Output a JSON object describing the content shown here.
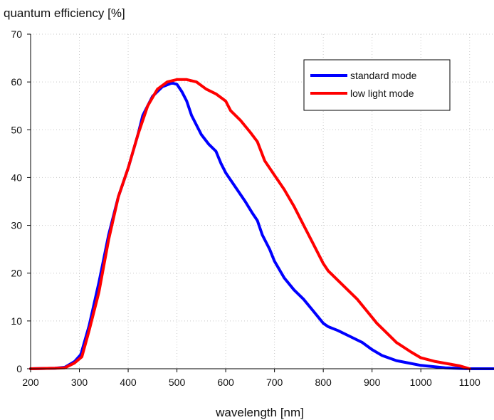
{
  "chart_data": {
    "type": "line",
    "ylabel": "quantum efficiency [%]",
    "xlabel": "wavelength [nm]",
    "xlim": [
      200,
      1150
    ],
    "ylim": [
      0,
      70
    ],
    "xticks": [
      200,
      300,
      400,
      500,
      600,
      700,
      800,
      900,
      1000,
      1100
    ],
    "yticks": [
      0,
      10,
      20,
      30,
      40,
      50,
      60,
      70
    ],
    "grid": true,
    "legend_position": "top-right",
    "series": [
      {
        "name": "standard mode",
        "color": "#0000ff",
        "points": [
          [
            200,
            0
          ],
          [
            250,
            0.1
          ],
          [
            270,
            0.3
          ],
          [
            290,
            1.5
          ],
          [
            303,
            3
          ],
          [
            320,
            9
          ],
          [
            340,
            18
          ],
          [
            360,
            28
          ],
          [
            380,
            36
          ],
          [
            400,
            42
          ],
          [
            420,
            49
          ],
          [
            430,
            53
          ],
          [
            450,
            57
          ],
          [
            470,
            59
          ],
          [
            490,
            59.8
          ],
          [
            500,
            59.5
          ],
          [
            510,
            58
          ],
          [
            520,
            56
          ],
          [
            530,
            53
          ],
          [
            550,
            49
          ],
          [
            565,
            47
          ],
          [
            580,
            45.5
          ],
          [
            590,
            43
          ],
          [
            600,
            41
          ],
          [
            620,
            38
          ],
          [
            640,
            35
          ],
          [
            655,
            32.5
          ],
          [
            665,
            31
          ],
          [
            675,
            28
          ],
          [
            690,
            25
          ],
          [
            700,
            22.5
          ],
          [
            720,
            19
          ],
          [
            740,
            16.5
          ],
          [
            760,
            14.5
          ],
          [
            780,
            12
          ],
          [
            800,
            9.5
          ],
          [
            810,
            8.8
          ],
          [
            830,
            8
          ],
          [
            850,
            7
          ],
          [
            880,
            5.5
          ],
          [
            900,
            4
          ],
          [
            920,
            2.8
          ],
          [
            950,
            1.7
          ],
          [
            1000,
            0.7
          ],
          [
            1050,
            0.2
          ],
          [
            1100,
            0
          ],
          [
            1150,
            0
          ]
        ]
      },
      {
        "name": "low light mode",
        "color": "#ff0000",
        "points": [
          [
            200,
            0
          ],
          [
            250,
            0.1
          ],
          [
            270,
            0.2
          ],
          [
            290,
            1.2
          ],
          [
            305,
            2.5
          ],
          [
            320,
            8
          ],
          [
            340,
            16
          ],
          [
            360,
            27
          ],
          [
            380,
            36
          ],
          [
            400,
            42
          ],
          [
            420,
            49
          ],
          [
            440,
            55
          ],
          [
            460,
            58.5
          ],
          [
            480,
            60
          ],
          [
            500,
            60.5
          ],
          [
            520,
            60.5
          ],
          [
            540,
            60
          ],
          [
            560,
            58.5
          ],
          [
            580,
            57.5
          ],
          [
            600,
            56
          ],
          [
            610,
            54
          ],
          [
            630,
            52
          ],
          [
            650,
            49.5
          ],
          [
            665,
            47.5
          ],
          [
            680,
            43.5
          ],
          [
            700,
            40.5
          ],
          [
            720,
            37.5
          ],
          [
            740,
            34
          ],
          [
            760,
            30
          ],
          [
            780,
            26
          ],
          [
            800,
            22
          ],
          [
            810,
            20.5
          ],
          [
            830,
            18.5
          ],
          [
            850,
            16.5
          ],
          [
            870,
            14.5
          ],
          [
            890,
            12
          ],
          [
            910,
            9.5
          ],
          [
            930,
            7.5
          ],
          [
            950,
            5.5
          ],
          [
            980,
            3.5
          ],
          [
            1000,
            2.3
          ],
          [
            1030,
            1.5
          ],
          [
            1080,
            0.6
          ],
          [
            1100,
            0
          ]
        ]
      }
    ]
  }
}
